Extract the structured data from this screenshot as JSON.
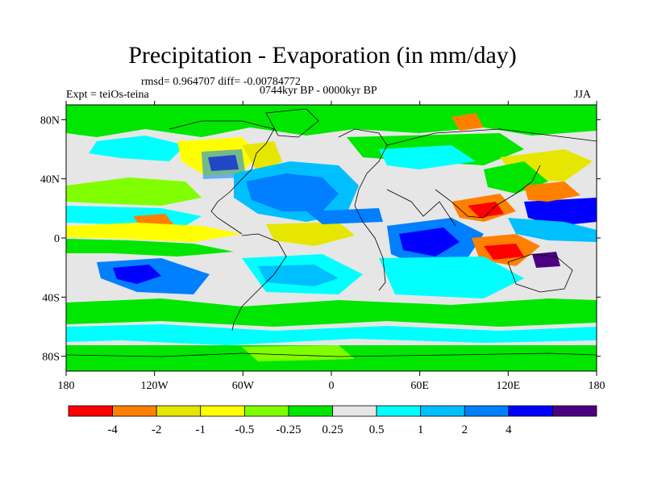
{
  "title": "Precipitation - Evaporation (in mm/day)",
  "stats": "rmsd= 0.964707 diff= -0.00784772",
  "experiment": "Expt = teiOs-teina",
  "period": "0744kyr BP - 0000kyr BP",
  "season": "JJA",
  "map": {
    "lon_range": [
      -180,
      180
    ],
    "lat_range": [
      -90,
      90
    ],
    "lat_ticks": [
      {
        "value": 80,
        "label": "80N"
      },
      {
        "value": 40,
        "label": "40N"
      },
      {
        "value": 0,
        "label": "0"
      },
      {
        "value": -40,
        "label": "40S"
      },
      {
        "value": -80,
        "label": "80S"
      }
    ],
    "lon_ticks": [
      {
        "value": -180,
        "label": "180"
      },
      {
        "value": -120,
        "label": "120W"
      },
      {
        "value": -60,
        "label": "60W"
      },
      {
        "value": 0,
        "label": "0"
      },
      {
        "value": 60,
        "label": "60E"
      },
      {
        "value": 120,
        "label": "120E"
      },
      {
        "value": 180,
        "label": "180"
      }
    ]
  },
  "colorbar": {
    "colors": [
      "#ff0000",
      "#ff8000",
      "#e6e600",
      "#ffff00",
      "#80ff00",
      "#00e600",
      "#e6e6e6",
      "#00ffff",
      "#00bfff",
      "#0080ff",
      "#0000ff",
      "#4b0082"
    ],
    "boundaries": [
      "-4",
      "-2",
      "-1",
      "-0.5",
      "-0.25",
      "0.25",
      "0.5",
      "1",
      "2",
      "4"
    ]
  },
  "colors": {
    "ocean_background": "#e6e6e6",
    "land_background": "#e6e6e6",
    "coastline": "#000000"
  }
}
